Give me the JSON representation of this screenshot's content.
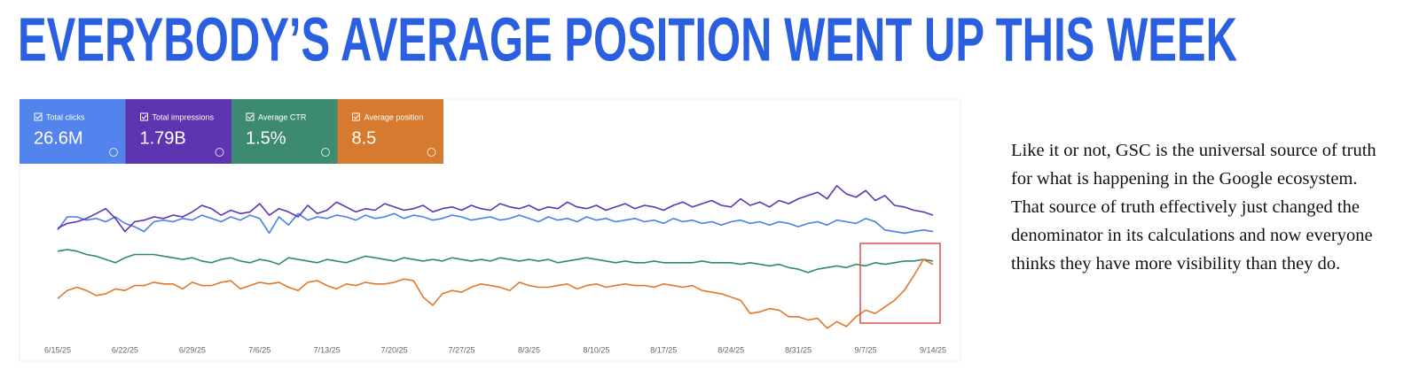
{
  "headline": "EVERYBODY’S AVERAGE POSITION WENT UP THIS WEEK",
  "paragraph": "Like it or not, GSC is the universal source of truth for what is happening in the Google ecosystem. That source of truth effectively just changed the denominator in its calculations and now everyone thinks they have more visibility than they do.",
  "chart_data": {
    "type": "line",
    "categories": [
      "6/15/25",
      null,
      null,
      null,
      null,
      null,
      null,
      "6/22/25",
      null,
      null,
      null,
      null,
      null,
      null,
      "6/29/25",
      null,
      null,
      null,
      null,
      null,
      null,
      "7/6/25",
      null,
      null,
      null,
      null,
      null,
      null,
      "7/13/25",
      null,
      null,
      null,
      null,
      null,
      null,
      "7/20/25",
      null,
      null,
      null,
      null,
      null,
      null,
      "7/27/25",
      null,
      null,
      null,
      null,
      null,
      null,
      "8/3/25",
      null,
      null,
      null,
      null,
      null,
      null,
      "8/10/25",
      null,
      null,
      null,
      null,
      null,
      null,
      "8/17/25",
      null,
      null,
      null,
      null,
      null,
      null,
      "8/24/25",
      null,
      null,
      null,
      null,
      null,
      null,
      "8/31/25",
      null,
      null,
      null,
      null,
      null,
      null,
      "9/7/25",
      null,
      null,
      null,
      null,
      null,
      null,
      "9/14/25"
    ],
    "ylim": [
      0,
      100
    ],
    "series": [
      {
        "name": "Total clicks",
        "total": "26.6M",
        "color": "#4a7ee8",
        "values": [
          65,
          73,
          73,
          71,
          72,
          70,
          73,
          69,
          67,
          64,
          70,
          71,
          70,
          72,
          71,
          74,
          72,
          70,
          73,
          71,
          74,
          72,
          63,
          73,
          68,
          75,
          71,
          73,
          72,
          74,
          73,
          71,
          74,
          72,
          73,
          75,
          72,
          74,
          73,
          71,
          72,
          74,
          73,
          71,
          72,
          73,
          71,
          72,
          74,
          72,
          70,
          73,
          71,
          72,
          70,
          73,
          71,
          72,
          70,
          71,
          72,
          70,
          71,
          69,
          72,
          70,
          71,
          69,
          70,
          68,
          70,
          71,
          69,
          70,
          68,
          70,
          69,
          67,
          69,
          70,
          68,
          71,
          70,
          69,
          72,
          70,
          65,
          64,
          63,
          64,
          65,
          64
        ]
      },
      {
        "name": "Total impressions",
        "total": "1.79B",
        "color": "#5e35b1",
        "values": [
          66,
          69,
          70,
          72,
          75,
          78,
          72,
          64,
          70,
          71,
          73,
          72,
          74,
          73,
          76,
          80,
          78,
          74,
          77,
          75,
          76,
          81,
          74,
          78,
          76,
          73,
          80,
          75,
          77,
          82,
          79,
          76,
          78,
          77,
          81,
          79,
          77,
          78,
          80,
          76,
          78,
          79,
          77,
          80,
          78,
          77,
          81,
          79,
          78,
          80,
          77,
          79,
          78,
          82,
          79,
          78,
          80,
          77,
          79,
          81,
          78,
          80,
          79,
          77,
          80,
          82,
          79,
          81,
          83,
          80,
          79,
          84,
          80,
          82,
          79,
          83,
          81,
          84,
          86,
          88,
          84,
          92,
          87,
          85,
          89,
          83,
          86,
          80,
          79,
          77,
          76,
          74
        ]
      },
      {
        "name": "Average CTR",
        "total": "1.5%",
        "color": "#2f8a6c",
        "values": [
          52,
          53,
          52,
          50,
          49,
          47,
          45,
          48,
          50,
          50,
          50,
          49,
          48,
          47,
          48,
          46,
          45,
          47,
          48,
          46,
          45,
          47,
          46,
          44,
          48,
          47,
          46,
          45,
          47,
          46,
          45,
          47,
          49,
          48,
          47,
          46,
          48,
          47,
          46,
          47,
          46,
          48,
          47,
          46,
          47,
          46,
          48,
          47,
          46,
          47,
          46,
          47,
          45,
          46,
          47,
          48,
          47,
          46,
          45,
          46,
          45,
          45,
          46,
          45,
          45,
          45,
          45,
          46,
          45,
          45,
          45,
          44,
          45,
          44,
          43,
          44,
          42,
          41,
          39,
          41,
          42,
          43,
          42,
          44,
          43,
          45,
          44,
          45,
          46,
          46,
          47,
          46
        ]
      },
      {
        "name": "Average position",
        "total": "8.5",
        "color": "#e0782a",
        "values": [
          23,
          28,
          30,
          28,
          25,
          26,
          29,
          28,
          31,
          31,
          33,
          32,
          32,
          29,
          33,
          31,
          31,
          33,
          34,
          29,
          31,
          33,
          32,
          33,
          30,
          28,
          33,
          34,
          31,
          29,
          32,
          31,
          33,
          32,
          32,
          33,
          35,
          34,
          24,
          19,
          26,
          28,
          27,
          30,
          32,
          31,
          30,
          28,
          33,
          31,
          30,
          30,
          31,
          32,
          29,
          31,
          32,
          30,
          31,
          32,
          31,
          31,
          30,
          32,
          31,
          30,
          31,
          28,
          27,
          26,
          24,
          22,
          14,
          15,
          17,
          16,
          12,
          12,
          10,
          11,
          5,
          9,
          6,
          12,
          16,
          14,
          18,
          22,
          28,
          37,
          47,
          44
        ]
      }
    ]
  }
}
